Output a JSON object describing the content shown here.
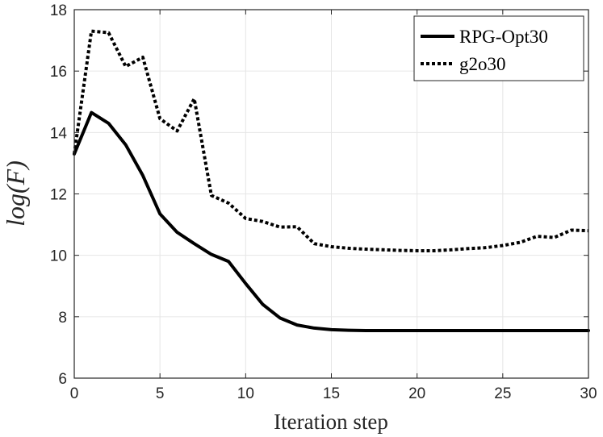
{
  "chart_data": {
    "type": "line",
    "xlabel": "Iteration step",
    "ylabel": "log(F)",
    "xlim": [
      0,
      30
    ],
    "ylim": [
      6,
      18
    ],
    "xticks": [
      0,
      5,
      10,
      15,
      20,
      25,
      30
    ],
    "yticks": [
      6,
      8,
      10,
      12,
      14,
      16,
      18
    ],
    "grid": true,
    "legend_position": "top-right",
    "x": [
      0,
      1,
      2,
      3,
      4,
      5,
      6,
      7,
      8,
      9,
      10,
      11,
      12,
      13,
      14,
      15,
      16,
      17,
      18,
      19,
      20,
      21,
      22,
      23,
      24,
      25,
      26,
      27,
      28,
      29,
      30
    ],
    "series": [
      {
        "name": "RPG-Opt30",
        "style": "solid",
        "color": "#000000",
        "values": [
          13.3,
          14.65,
          14.3,
          13.6,
          12.6,
          11.35,
          10.75,
          10.38,
          10.03,
          9.8,
          9.08,
          8.4,
          7.96,
          7.73,
          7.63,
          7.58,
          7.56,
          7.55,
          7.55,
          7.55,
          7.55,
          7.55,
          7.55,
          7.55,
          7.55,
          7.55,
          7.55,
          7.55,
          7.55,
          7.55,
          7.55
        ]
      },
      {
        "name": "g2o30",
        "style": "dotted",
        "color": "#000000",
        "values": [
          13.3,
          17.3,
          17.25,
          16.15,
          16.45,
          14.45,
          14.05,
          15.1,
          11.95,
          11.7,
          11.2,
          11.1,
          10.92,
          10.93,
          10.38,
          10.28,
          10.23,
          10.2,
          10.18,
          10.16,
          10.15,
          10.15,
          10.18,
          10.22,
          10.25,
          10.32,
          10.42,
          10.62,
          10.58,
          10.82,
          10.8
        ]
      }
    ]
  }
}
